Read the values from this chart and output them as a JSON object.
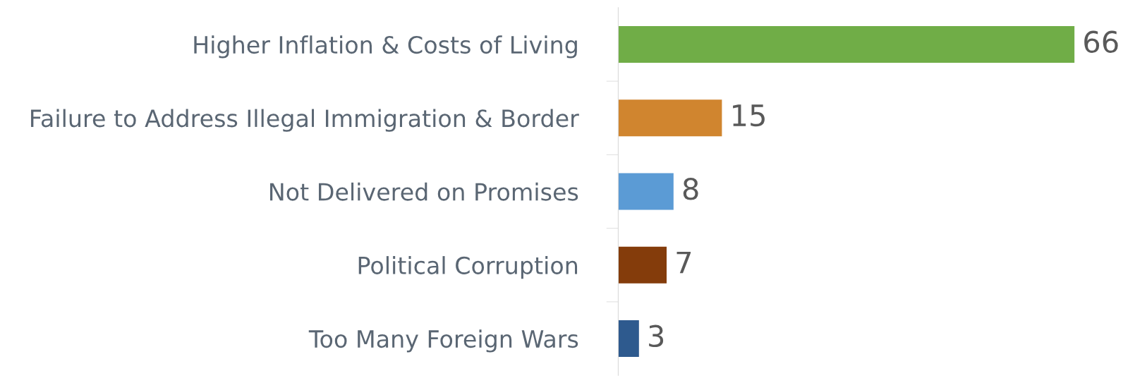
{
  "chart_data": {
    "type": "bar",
    "orientation": "horizontal",
    "categories": [
      "Higher Inflation & Costs of Living",
      "Failure to Address Illegal Immigration & Border",
      "Not Delivered on Promises",
      "Political Corruption",
      "Too Many Foreign Wars"
    ],
    "values": [
      66,
      15,
      8,
      7,
      3
    ],
    "colors": [
      "#70ad47",
      "#d0852f",
      "#5b9bd5",
      "#843c0b",
      "#2e5a8e"
    ],
    "data_labels": true,
    "tick_labels": "y",
    "grid": false,
    "legend": false
  }
}
